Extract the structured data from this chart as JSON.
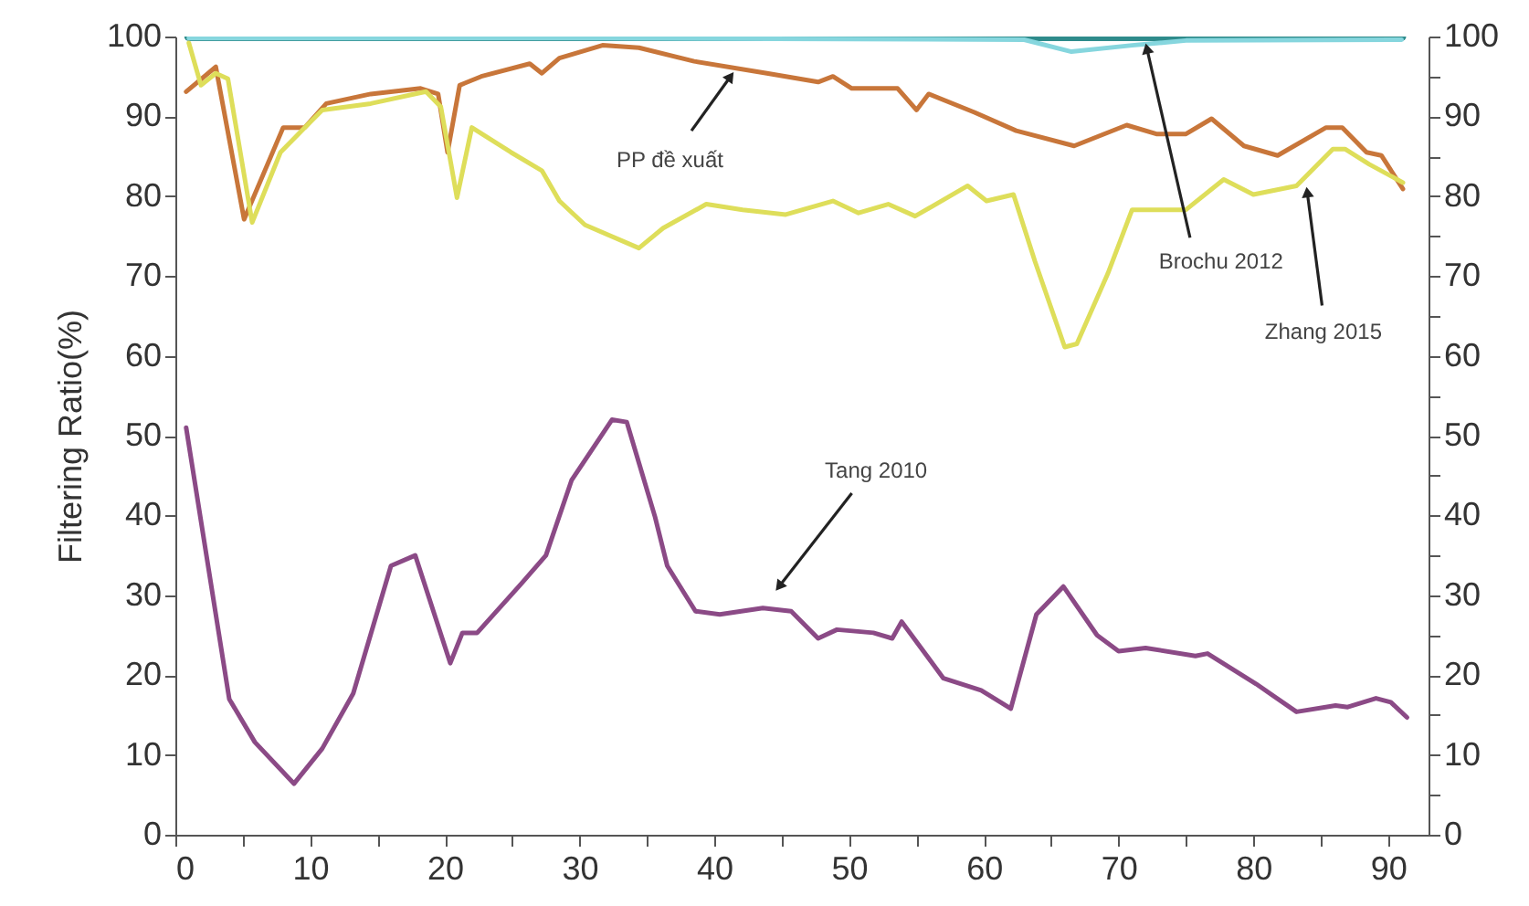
{
  "chart_data": {
    "type": "line",
    "ylabel": "Filtering Ratio(%)",
    "xlim": [
      0,
      93
    ],
    "xticks": [
      0,
      {
        "value": 5,
        "label": null
      },
      10,
      {
        "value": 15,
        "label": null
      },
      20,
      {
        "value": 25,
        "label": null
      },
      30,
      {
        "value": 35,
        "label": null
      },
      40,
      {
        "value": 45,
        "label": null
      },
      50,
      {
        "value": 55,
        "label": null
      },
      60,
      {
        "value": 65,
        "label": null
      },
      70,
      {
        "value": 75,
        "label": null
      },
      80,
      {
        "value": 85,
        "label": null
      },
      90
    ],
    "ylim": [
      0,
      100
    ],
    "yticks": [
      0,
      {
        "value": 5,
        "label": null
      },
      10,
      {
        "value": 15,
        "label": null
      },
      20,
      {
        "value": 25,
        "label": null
      },
      30,
      {
        "value": 35,
        "label": null
      },
      40,
      {
        "value": 45,
        "label": null
      },
      50,
      {
        "value": 55,
        "label": null
      },
      60,
      {
        "value": 65,
        "label": null
      },
      70,
      {
        "value": 75,
        "label": null
      },
      80,
      {
        "value": 85,
        "label": null
      },
      90,
      {
        "value": 95,
        "label": null
      },
      100
    ],
    "y2lim": [
      0,
      100
    ],
    "y2ticks": [
      0,
      {
        "value": 5,
        "label": null
      },
      10,
      {
        "value": 15,
        "label": null
      },
      20,
      {
        "value": 25,
        "label": null
      },
      30,
      {
        "value": 35,
        "label": null
      },
      40,
      {
        "value": 45,
        "label": null
      },
      50,
      {
        "value": 55,
        "label": null
      },
      60,
      {
        "value": 65,
        "label": null
      },
      70,
      {
        "value": 75,
        "label": null
      },
      80,
      {
        "value": 85,
        "label": null
      },
      90,
      {
        "value": 95,
        "label": null
      },
      100
    ],
    "grid": false,
    "series": [
      {
        "color": "#2e8b8b",
        "x": [
          1,
          91
        ],
        "values": [
          100,
          100
        ]
      },
      {
        "color": "#86d6de",
        "x": [
          1,
          30,
          63,
          66.5,
          71,
          75,
          91
        ],
        "values": [
          99.8,
          99.8,
          99.6,
          98.1,
          98.9,
          99.5,
          99.6
        ]
      },
      {
        "color": "#c8763a",
        "x": [
          0.8,
          3,
          5.1,
          8,
          9.6,
          11.2,
          14.5,
          18.2,
          19.5,
          20.2,
          21.1,
          22.7,
          26.3,
          27.2,
          28.5,
          31.7,
          34.4,
          38.5,
          43.9,
          47.7,
          48.8,
          50.2,
          53.6,
          55,
          55.9,
          59.3,
          62.4,
          66.7,
          70.6,
          72.8,
          75,
          76.9,
          79.3,
          81.8,
          85.4,
          86.6,
          88.4,
          89.5,
          91.1
        ],
        "values": [
          93.1,
          96.2,
          77.1,
          88.6,
          88.6,
          91.6,
          92.8,
          93.5,
          92.8,
          85.5,
          93.9,
          95,
          96.6,
          95.4,
          97.3,
          98.9,
          98.6,
          96.9,
          95.4,
          94.3,
          95,
          93.5,
          93.5,
          90.8,
          92.8,
          90.5,
          88.2,
          86.3,
          88.9,
          87.8,
          87.8,
          89.7,
          86.3,
          85.1,
          88.6,
          88.6,
          85.5,
          85.1,
          80.9
        ]
      },
      {
        "color": "#dede5a",
        "x": [
          1,
          1.9,
          3,
          3.9,
          5.7,
          7.8,
          9.6,
          10.9,
          14.5,
          18.6,
          19.7,
          20.9,
          22,
          24.9,
          27.2,
          28.5,
          30.4,
          34.4,
          36.2,
          39.4,
          42.1,
          45.3,
          48.8,
          50.7,
          52.9,
          54.9,
          58.8,
          60.2,
          62.2,
          63.8,
          66,
          66.9,
          69.2,
          71,
          75,
          77.8,
          80,
          83.2,
          85.9,
          86.8,
          88.6,
          91.1
        ],
        "values": [
          99.2,
          93.9,
          95.4,
          94.7,
          76.7,
          85.5,
          88.6,
          90.8,
          91.6,
          93.1,
          91.2,
          79.8,
          88.6,
          85.5,
          83.2,
          79.4,
          76.4,
          73.5,
          76,
          79,
          78.3,
          77.7,
          79.4,
          77.9,
          79,
          77.5,
          81.3,
          79.4,
          80.2,
          71.8,
          61.1,
          61.5,
          70.3,
          78.3,
          78.3,
          82.1,
          80.2,
          81.3,
          85.9,
          85.9,
          84,
          81.7
        ]
      },
      {
        "color": "#8b4a86",
        "x": [
          0.8,
          4,
          5.9,
          8.8,
          10.9,
          13.2,
          16,
          17.8,
          20.4,
          21.3,
          22.4,
          25.7,
          27.5,
          29.4,
          32.4,
          33.5,
          35.6,
          36.5,
          38.6,
          40.4,
          43.6,
          45.7,
          47.7,
          49.1,
          51.8,
          53.2,
          53.9,
          57,
          59.8,
          62,
          63.9,
          65.9,
          68.4,
          70,
          72,
          75.7,
          76.6,
          80.2,
          83.2,
          86.1,
          87,
          89.1,
          90.2,
          91.4
        ],
        "values": [
          51,
          17,
          11.6,
          6.4,
          10.8,
          17.7,
          33.7,
          35,
          21.5,
          25.3,
          25.3,
          31.5,
          35,
          44.4,
          52,
          51.7,
          39.8,
          33.7,
          28,
          27.6,
          28.4,
          28,
          24.6,
          25.7,
          25.3,
          24.6,
          26.7,
          19.6,
          18.1,
          15.8,
          27.6,
          31.1,
          25,
          23,
          23.4,
          22.4,
          22.7,
          18.9,
          15.4,
          16.2,
          16,
          17.1,
          16.6,
          14.7
        ]
      }
    ],
    "annotations": [
      {
        "text": "PP đề xuất",
        "x": 41.2,
        "y": 95
      },
      {
        "text": "Brochu 2012",
        "x": 72.1,
        "y": 98.5
      },
      {
        "text": "Zhang 2015",
        "x": 84,
        "y": 80.5
      },
      {
        "text": "Tang 2010",
        "x": 44.8,
        "y": 31.1
      }
    ]
  }
}
